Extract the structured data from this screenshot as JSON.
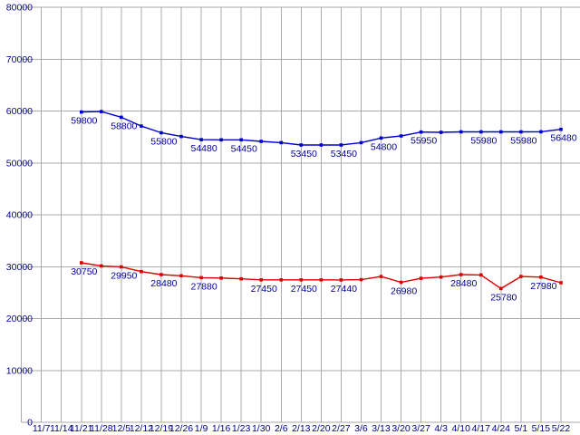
{
  "chart_data": {
    "type": "line",
    "title": "",
    "xlabel": "",
    "ylabel": "",
    "legend": false,
    "grid": true,
    "background_color": "#ffffff",
    "grid_color": "#aaaaaa",
    "label_text_color": "#000099",
    "categories": [
      "11/7",
      "11/14",
      "11/21",
      "11/28",
      "12/5",
      "12/12",
      "12/19",
      "12/26",
      "1/9",
      "1/16",
      "1/23",
      "1/30",
      "2/6",
      "2/13",
      "2/20",
      "2/27",
      "3/6",
      "3/13",
      "3/20",
      "3/27",
      "4/3",
      "4/10",
      "4/17",
      "4/24",
      "5/1",
      "5/15",
      "5/22"
    ],
    "series_start_category_index": 2,
    "series": [
      {
        "name": "blue",
        "color": "#0000cc",
        "values": [
          59800,
          59900,
          58800,
          57100,
          55800,
          55100,
          54480,
          54450,
          54450,
          54150,
          53900,
          53450,
          53450,
          53450,
          53900,
          54800,
          55200,
          55950,
          55900,
          55980,
          55980,
          55980,
          55980,
          56000,
          56480
        ],
        "labeled_point_indices": [
          0,
          2,
          4,
          6,
          8,
          11,
          13,
          15,
          17,
          20,
          22,
          24
        ],
        "point_labels": [
          "59800",
          "58800",
          "55800",
          "54480",
          "54450",
          "53450",
          "53450",
          "54800",
          "55950",
          "55980",
          "55980",
          "56480"
        ]
      },
      {
        "name": "red",
        "color": "#dd0000",
        "values": [
          30750,
          30150,
          29950,
          29050,
          28480,
          28250,
          27880,
          27800,
          27650,
          27450,
          27450,
          27450,
          27450,
          27440,
          27500,
          28100,
          26980,
          27750,
          28000,
          28480,
          28400,
          25780,
          28100,
          27980,
          26900
        ],
        "labeled_point_indices": [
          0,
          2,
          4,
          6,
          9,
          11,
          13,
          16,
          19,
          21,
          23
        ],
        "point_labels": [
          "30750",
          "29950",
          "28480",
          "27880",
          "27450",
          "27450",
          "27440",
          "26980",
          "28480",
          "25780",
          "27980"
        ]
      }
    ],
    "y_axis": {
      "min": 0,
      "max": 80000,
      "step": 10000,
      "tick_labels": [
        "0",
        "10000",
        "20000",
        "30000",
        "40000",
        "50000",
        "60000",
        "70000",
        "80000"
      ]
    }
  }
}
